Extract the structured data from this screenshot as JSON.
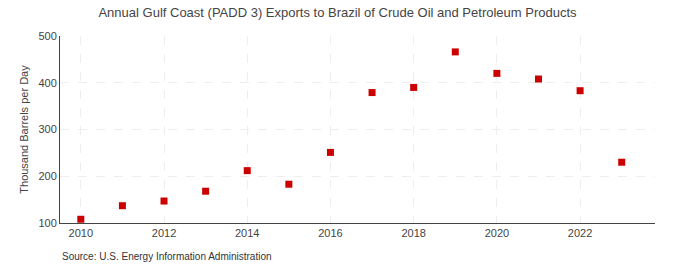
{
  "chart_data": {
    "type": "scatter",
    "title": "Annual Gulf Coast (PADD 3) Exports to Brazil of Crude Oil and Petroleum Products",
    "y_label": "Thousand Barrels per Day",
    "source": "Source: U.S. Energy Information Administration",
    "x": [
      2010,
      2011,
      2012,
      2013,
      2014,
      2015,
      2016,
      2017,
      2018,
      2019,
      2020,
      2021,
      2022,
      2023
    ],
    "values": [
      108,
      137,
      147,
      168,
      212,
      183,
      251,
      379,
      390,
      466,
      420,
      408,
      383,
      230
    ],
    "color": "#cc0000",
    "marker": "square",
    "xlim": [
      2009.5,
      2023.8
    ],
    "xticks": [
      2010,
      2012,
      2014,
      2016,
      2018,
      2020,
      2022
    ],
    "ylim": [
      100,
      500
    ],
    "yticks": [
      100,
      200,
      300,
      400,
      500
    ],
    "grid": true
  }
}
